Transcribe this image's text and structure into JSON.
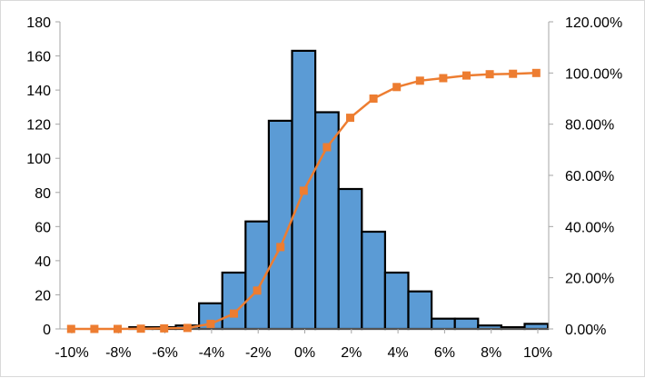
{
  "chart_data": {
    "type": "bar",
    "title": "",
    "xlabel": "",
    "ylabel": "",
    "x_tick_labels": [
      "-10%",
      "-8%",
      "-6%",
      "-4%",
      "-2%",
      "0%",
      "2%",
      "4%",
      "6%",
      "8%",
      "10%"
    ],
    "x_tick_values": [
      -10,
      -8,
      -6,
      -4,
      -2,
      0,
      2,
      4,
      6,
      8,
      10
    ],
    "bins": [
      -10,
      -9,
      -8,
      -7,
      -6,
      -5,
      -4,
      -3,
      -2,
      -1,
      0,
      1,
      2,
      3,
      4,
      5,
      6,
      7,
      8,
      9,
      10
    ],
    "ylim": [
      0,
      180
    ],
    "y_ticks": [
      0,
      20,
      40,
      60,
      80,
      100,
      120,
      140,
      160,
      180
    ],
    "y2lim": [
      0,
      1.2
    ],
    "y2_ticks": [
      0,
      0.2,
      0.4,
      0.6,
      0.8,
      1.0,
      1.2
    ],
    "y2_tick_labels": [
      "0.00%",
      "20.00%",
      "40.00%",
      "60.00%",
      "80.00%",
      "100.00%",
      "120.00%"
    ],
    "grid": false,
    "series": [
      {
        "type": "bar",
        "axis": "left",
        "values": [
          0,
          0,
          0,
          1,
          1,
          2,
          15,
          33,
          63,
          122,
          163,
          127,
          82,
          57,
          33,
          22,
          6,
          6,
          2,
          1,
          3
        ]
      },
      {
        "type": "line",
        "axis": "right",
        "marker": "square",
        "values": [
          0.0,
          0.0,
          0.0,
          0.001,
          0.002,
          0.004,
          0.02,
          0.06,
          0.15,
          0.32,
          0.54,
          0.71,
          0.825,
          0.9,
          0.945,
          0.97,
          0.98,
          0.99,
          0.995,
          0.997,
          1.0
        ]
      }
    ],
    "colors": {
      "bar_fill": "#5b9bd5",
      "bar_stroke": "#000000",
      "line": "#ed7d31",
      "axis": "#a6a6a6"
    }
  }
}
